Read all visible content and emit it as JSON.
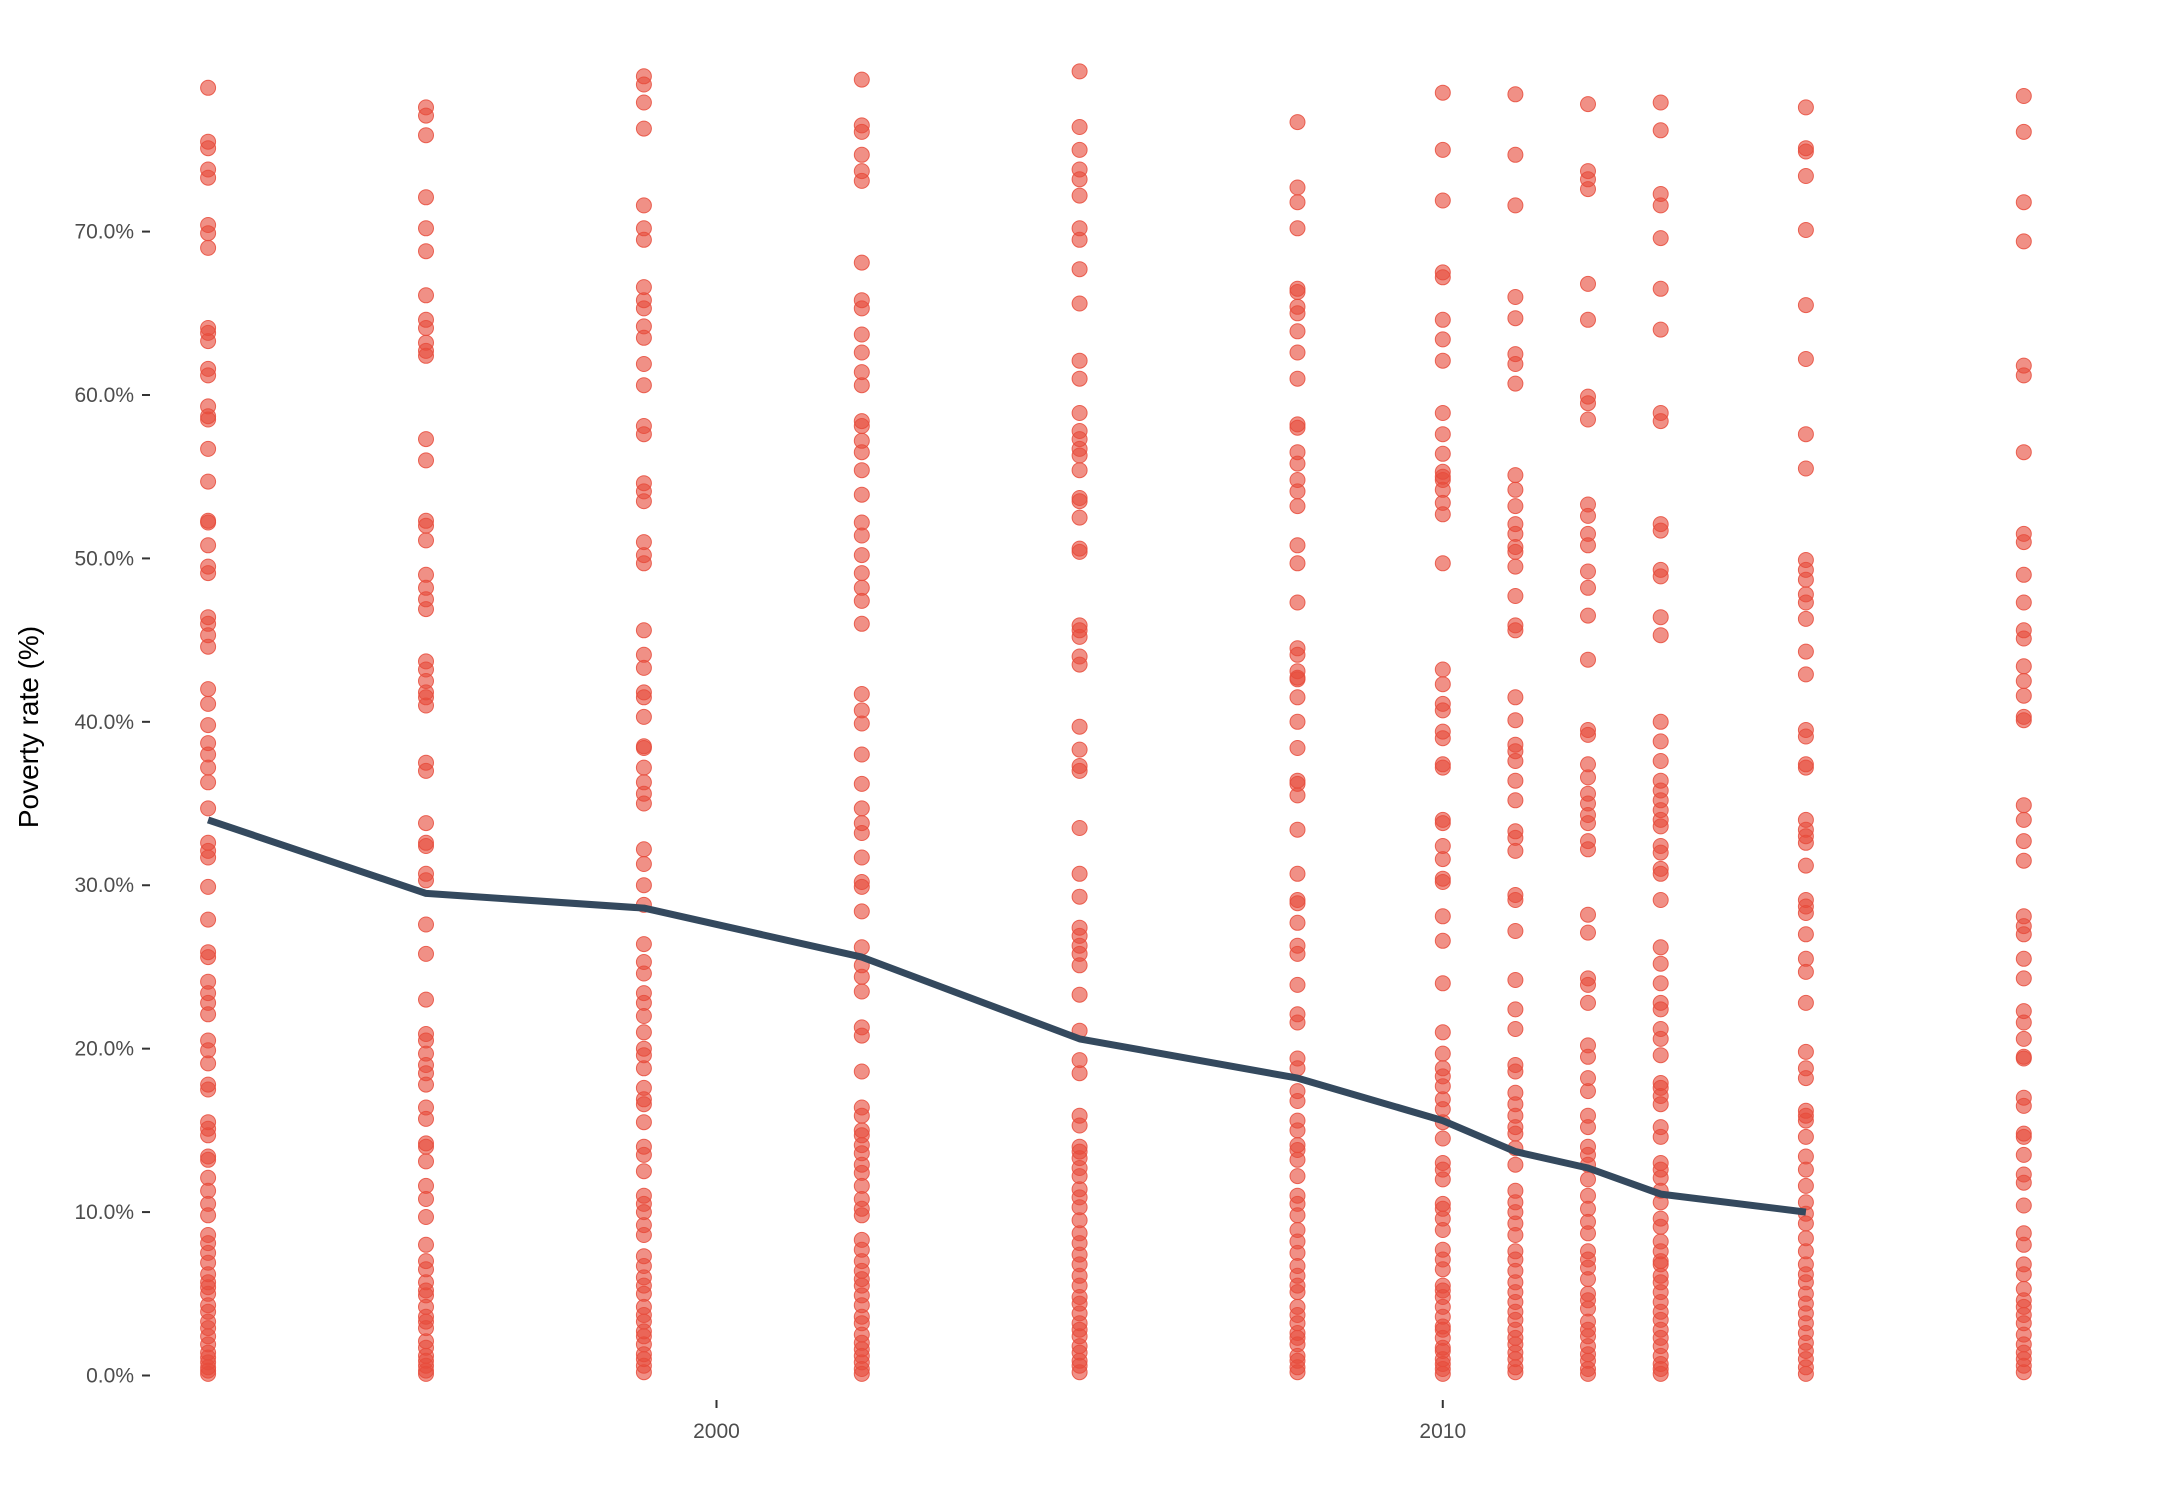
{
  "chart_data": {
    "type": "scatter",
    "title": "",
    "xlabel": "",
    "ylabel": "Poverty rate (%)",
    "xlim": [
      1992.2,
      2019.6
    ],
    "ylim": [
      -1.5,
      80.5
    ],
    "x_ticks": [
      2000,
      2010
    ],
    "x_tick_labels": [
      "2000",
      "2010"
    ],
    "y_ticks": [
      0,
      10,
      20,
      30,
      40,
      50,
      60,
      70
    ],
    "y_tick_labels": [
      "0.0%",
      "10.0%",
      "20.0%",
      "30.0%",
      "40.0%",
      "50.0%",
      "60.0%",
      "70.0%"
    ],
    "grid": false,
    "legend": "none",
    "point_color": "#e74c3c",
    "line_color": "#34495e",
    "years": [
      1993,
      1996,
      1999,
      2002,
      2005,
      2008,
      2010,
      2011,
      2012,
      2013,
      2015,
      2018
    ],
    "trend_line": {
      "x": [
        1993,
        1996,
        1999,
        2002,
        2005,
        2008,
        2010,
        2011,
        2012,
        2013,
        2015
      ],
      "y": [
        34.0,
        29.5,
        28.6,
        25.6,
        20.6,
        18.2,
        15.6,
        13.7,
        12.7,
        11.1,
        10.0
      ]
    },
    "scatter_series": [
      {
        "x": 1993,
        "y": [
          78.8,
          75.5,
          75.1,
          73.8,
          73.3,
          70.4,
          69.9,
          69.0,
          64.1,
          63.8,
          63.3,
          61.6,
          61.2,
          59.3,
          58.7,
          58.5,
          56.7,
          54.7,
          52.3,
          52.2,
          50.8,
          49.5,
          49.1,
          46.4,
          46.0,
          45.3,
          44.6,
          42.0,
          41.1,
          39.8,
          38.7,
          38.0,
          37.2,
          36.3,
          34.7,
          32.6,
          32.1,
          31.7,
          29.9,
          27.9,
          25.9,
          25.6,
          24.1,
          23.4,
          22.8,
          22.1,
          20.5,
          19.9,
          19.1,
          17.8,
          17.5,
          15.5,
          15.1,
          14.7,
          13.4,
          13.2,
          12.1,
          11.3,
          10.5,
          9.8,
          8.6,
          8.1,
          7.5,
          6.9,
          6.2,
          5.7,
          5.4,
          5.0,
          4.3,
          3.9,
          3.3,
          2.9,
          2.4,
          1.9,
          1.4,
          1.1,
          0.8,
          0.5,
          0.3,
          0.1
        ]
      },
      {
        "x": 1996,
        "y": [
          77.6,
          77.1,
          75.9,
          72.1,
          70.2,
          68.8,
          66.1,
          64.6,
          64.1,
          63.2,
          62.7,
          62.4,
          57.3,
          56.0,
          52.3,
          52.0,
          51.1,
          49.0,
          48.2,
          47.5,
          46.9,
          43.7,
          43.2,
          42.5,
          41.8,
          41.5,
          41.0,
          37.5,
          37.0,
          33.8,
          32.6,
          32.4,
          30.7,
          30.3,
          27.6,
          25.8,
          23.0,
          20.9,
          20.5,
          19.7,
          19.0,
          18.5,
          17.8,
          16.4,
          15.7,
          14.2,
          14.0,
          13.1,
          11.6,
          10.8,
          9.7,
          8.0,
          7.0,
          6.5,
          5.7,
          5.2,
          4.9,
          4.2,
          3.6,
          3.3,
          2.9,
          2.1,
          1.7,
          1.2,
          0.9,
          0.6,
          0.3,
          0.1
        ]
      },
      {
        "x": 1999,
        "y": [
          79.5,
          79.0,
          77.9,
          76.3,
          71.6,
          70.2,
          69.5,
          66.6,
          65.8,
          65.3,
          64.2,
          63.5,
          61.9,
          60.6,
          58.1,
          57.6,
          54.6,
          54.1,
          53.5,
          51.0,
          50.2,
          49.7,
          45.6,
          44.1,
          43.3,
          41.8,
          41.5,
          40.3,
          38.5,
          38.4,
          37.2,
          36.3,
          35.6,
          35.0,
          32.2,
          31.3,
          30.0,
          28.8,
          26.4,
          25.3,
          24.6,
          23.4,
          22.8,
          22.0,
          21.0,
          20.0,
          19.6,
          18.8,
          17.6,
          16.9,
          16.6,
          15.5,
          14.0,
          13.5,
          12.5,
          11.0,
          10.5,
          10.0,
          9.2,
          8.6,
          7.3,
          6.7,
          6.0,
          5.5,
          5.0,
          4.2,
          3.7,
          3.3,
          2.7,
          2.4,
          1.9,
          1.3,
          1.0,
          0.6,
          0.2
        ]
      },
      {
        "x": 2002,
        "y": [
          79.3,
          76.5,
          76.1,
          74.7,
          73.7,
          73.1,
          68.1,
          65.8,
          65.3,
          63.7,
          62.6,
          61.4,
          60.6,
          58.4,
          58.1,
          57.2,
          56.5,
          55.4,
          53.9,
          52.2,
          51.4,
          50.2,
          49.1,
          48.2,
          47.4,
          46.0,
          41.7,
          40.7,
          39.9,
          38.0,
          36.2,
          34.7,
          33.8,
          33.2,
          31.7,
          30.2,
          29.9,
          28.4,
          26.2,
          25.1,
          24.4,
          23.5,
          21.3,
          20.8,
          18.6,
          16.4,
          15.9,
          15.0,
          14.7,
          14.1,
          13.6,
          12.9,
          12.4,
          11.6,
          10.8,
          10.2,
          9.8,
          8.3,
          7.7,
          7.0,
          6.4,
          5.9,
          5.5,
          4.9,
          4.3,
          3.6,
          3.2,
          2.5,
          2.0,
          1.6,
          1.2,
          0.8,
          0.4,
          0.1
        ]
      },
      {
        "x": 2005,
        "y": [
          79.8,
          76.4,
          75.0,
          73.8,
          73.2,
          72.2,
          70.2,
          69.5,
          67.7,
          65.6,
          62.1,
          61.0,
          58.9,
          57.8,
          57.3,
          56.7,
          56.3,
          55.4,
          53.7,
          53.5,
          52.5,
          50.6,
          50.4,
          45.9,
          45.6,
          45.2,
          44.0,
          43.5,
          39.7,
          38.3,
          37.3,
          37.0,
          33.5,
          30.7,
          29.3,
          27.4,
          26.9,
          26.3,
          25.8,
          25.1,
          23.3,
          21.1,
          19.3,
          18.5,
          15.9,
          15.3,
          14.0,
          13.7,
          13.3,
          12.7,
          12.2,
          11.4,
          10.9,
          10.3,
          9.5,
          8.7,
          8.1,
          7.4,
          6.8,
          6.1,
          5.5,
          4.8,
          4.4,
          3.8,
          3.2,
          2.8,
          2.4,
          1.8,
          1.4,
          0.9,
          0.6,
          0.2
        ]
      },
      {
        "x": 2008,
        "y": [
          76.7,
          72.7,
          71.8,
          70.2,
          66.5,
          66.3,
          65.4,
          65.0,
          63.9,
          62.6,
          61.0,
          58.2,
          58.0,
          56.5,
          55.8,
          54.8,
          54.1,
          53.2,
          50.8,
          49.7,
          47.3,
          44.5,
          44.1,
          43.1,
          42.7,
          42.6,
          41.5,
          40.0,
          38.4,
          36.4,
          36.2,
          35.5,
          33.4,
          30.7,
          29.1,
          28.9,
          27.7,
          26.3,
          25.8,
          23.9,
          22.1,
          21.6,
          19.4,
          18.8,
          17.4,
          16.8,
          15.6,
          15.0,
          14.1,
          13.8,
          13.2,
          12.2,
          11.0,
          10.5,
          9.8,
          8.9,
          8.2,
          7.5,
          6.7,
          6.1,
          5.5,
          5.1,
          4.2,
          3.7,
          3.2,
          2.6,
          2.3,
          1.9,
          1.2,
          0.9,
          0.5,
          0.2
        ]
      },
      {
        "x": 2010,
        "y": [
          78.5,
          75.0,
          71.9,
          67.5,
          67.2,
          64.6,
          63.4,
          62.1,
          58.9,
          57.6,
          56.4,
          55.3,
          55.0,
          54.8,
          54.2,
          53.4,
          52.7,
          49.7,
          43.2,
          42.3,
          41.1,
          40.7,
          39.4,
          39.0,
          37.4,
          37.2,
          34.0,
          33.8,
          32.4,
          31.6,
          30.4,
          30.2,
          28.1,
          26.6,
          24.0,
          21.0,
          19.7,
          18.8,
          18.3,
          17.7,
          16.9,
          16.3,
          15.5,
          14.5,
          13.0,
          12.6,
          12.0,
          10.5,
          10.2,
          9.6,
          8.9,
          7.7,
          7.1,
          6.5,
          5.5,
          5.2,
          4.8,
          4.2,
          3.6,
          3.0,
          2.8,
          2.3,
          1.7,
          1.5,
          1.0,
          0.7,
          0.4,
          0.1
        ]
      },
      {
        "x": 2011,
        "y": [
          78.4,
          74.7,
          71.6,
          66.0,
          64.7,
          62.5,
          61.9,
          60.7,
          55.1,
          54.2,
          53.2,
          52.1,
          51.5,
          50.7,
          50.4,
          49.5,
          47.7,
          45.9,
          45.6,
          41.5,
          40.1,
          38.6,
          38.2,
          37.6,
          36.4,
          35.2,
          33.3,
          32.9,
          32.1,
          29.4,
          29.1,
          27.2,
          24.2,
          22.4,
          21.2,
          19.0,
          18.6,
          17.3,
          16.6,
          15.9,
          15.2,
          14.8,
          13.9,
          12.9,
          11.3,
          10.6,
          10.0,
          9.3,
          8.6,
          7.6,
          7.1,
          6.4,
          5.7,
          5.1,
          4.5,
          3.9,
          3.4,
          2.8,
          2.3,
          1.9,
          1.4,
          1.0,
          0.5,
          0.2
        ]
      },
      {
        "x": 2012,
        "y": [
          77.8,
          73.7,
          73.2,
          72.6,
          66.8,
          64.6,
          59.9,
          59.5,
          58.5,
          53.3,
          52.6,
          51.5,
          50.8,
          49.2,
          48.2,
          46.5,
          43.8,
          39.5,
          39.2,
          37.4,
          36.6,
          35.6,
          35.0,
          34.3,
          33.8,
          32.7,
          32.2,
          28.2,
          27.1,
          24.3,
          23.9,
          22.8,
          20.2,
          19.5,
          18.2,
          17.4,
          15.9,
          15.2,
          14.0,
          13.5,
          12.9,
          12.0,
          11.0,
          10.2,
          9.4,
          8.7,
          7.6,
          7.1,
          6.6,
          5.9,
          5.0,
          4.6,
          4.1,
          3.3,
          2.8,
          2.4,
          1.8,
          1.3,
          0.9,
          0.4,
          0.1
        ]
      },
      {
        "x": 2013,
        "y": [
          77.9,
          76.2,
          72.3,
          71.6,
          69.6,
          66.5,
          64.0,
          58.9,
          58.4,
          52.1,
          51.7,
          49.3,
          48.9,
          46.4,
          45.3,
          40.0,
          38.8,
          37.6,
          36.4,
          35.8,
          35.2,
          34.6,
          34.0,
          33.6,
          32.4,
          32.0,
          31.0,
          30.7,
          29.1,
          26.2,
          25.2,
          24.0,
          22.8,
          22.4,
          21.2,
          20.6,
          19.6,
          17.9,
          17.6,
          17.1,
          16.6,
          15.2,
          14.6,
          13.0,
          12.6,
          12.1,
          11.3,
          10.6,
          9.6,
          9.1,
          8.2,
          7.6,
          7.0,
          6.8,
          6.1,
          5.7,
          5.1,
          4.5,
          3.9,
          3.4,
          2.8,
          2.3,
          1.8,
          1.2,
          0.7,
          0.4,
          0.1
        ]
      },
      {
        "x": 2015,
        "y": [
          77.6,
          75.1,
          74.9,
          73.4,
          70.1,
          65.5,
          62.2,
          57.6,
          55.5,
          49.9,
          49.3,
          48.7,
          47.8,
          47.3,
          46.3,
          44.3,
          42.9,
          39.5,
          39.1,
          37.4,
          37.2,
          34.0,
          33.4,
          33.0,
          32.6,
          31.2,
          29.1,
          28.7,
          28.3,
          27.0,
          25.5,
          24.7,
          22.8,
          19.8,
          18.8,
          18.2,
          16.2,
          15.9,
          15.6,
          14.6,
          13.4,
          12.6,
          11.6,
          10.6,
          9.9,
          9.3,
          8.4,
          7.6,
          6.8,
          6.2,
          5.7,
          5.0,
          4.4,
          3.8,
          3.2,
          2.6,
          2.0,
          1.5,
          1.0,
          0.5,
          0.1
        ]
      },
      {
        "x": 2018,
        "y": [
          78.3,
          76.1,
          71.8,
          69.4,
          61.8,
          61.2,
          56.5,
          51.5,
          51.0,
          49.0,
          47.3,
          45.6,
          45.1,
          43.4,
          42.5,
          41.6,
          40.3,
          40.1,
          34.9,
          34.0,
          32.7,
          31.5,
          28.1,
          27.5,
          27.0,
          25.5,
          24.3,
          22.3,
          21.6,
          20.6,
          19.5,
          19.4,
          17.0,
          16.5,
          14.8,
          14.6,
          13.5,
          12.3,
          11.8,
          10.4,
          8.7,
          8.0,
          6.8,
          6.2,
          5.3,
          4.6,
          4.2,
          3.7,
          3.2,
          2.5,
          1.9,
          1.4,
          1.0,
          0.6,
          0.2
        ]
      }
    ]
  }
}
